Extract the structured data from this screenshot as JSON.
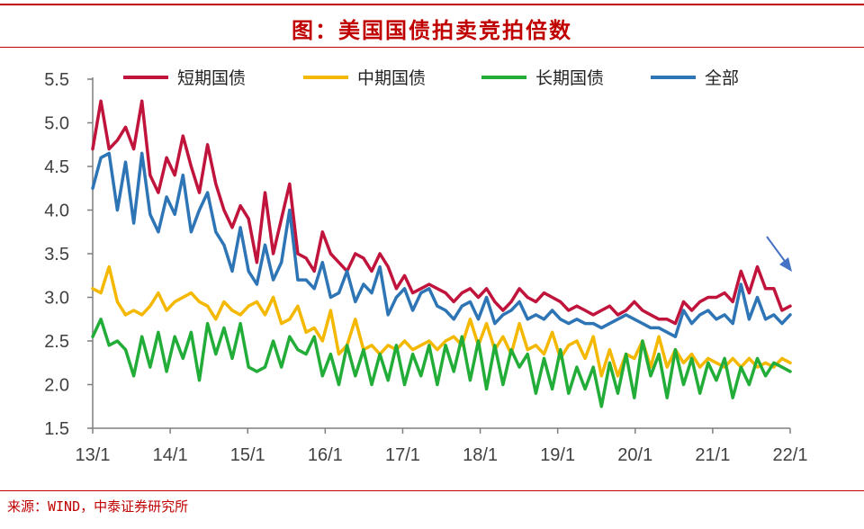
{
  "title": "图：美国国债拍卖竞拍倍数",
  "source": "来源：WIND，中泰证券研究所",
  "chart_data": {
    "type": "line",
    "ylim": [
      1.5,
      5.5
    ],
    "y_ticks": [
      "5.5",
      "5.0",
      "4.5",
      "4.0",
      "3.5",
      "3.0",
      "2.5",
      "2.0",
      "1.5"
    ],
    "x_ticks": [
      "13/1",
      "14/1",
      "15/1",
      "16/1",
      "17/1",
      "18/1",
      "19/1",
      "20/1",
      "21/1",
      "22/1"
    ],
    "x_range": [
      0,
      108
    ],
    "grid": false,
    "legend": "top",
    "annotation": {
      "type": "arrow",
      "color": "#4472c4",
      "direction": "down-right"
    },
    "series": [
      {
        "name": "短期国债",
        "color": "#c0143c",
        "values": [
          4.7,
          5.25,
          4.7,
          4.8,
          4.95,
          4.7,
          5.25,
          4.4,
          4.2,
          4.6,
          4.4,
          4.85,
          4.5,
          4.2,
          4.75,
          4.3,
          4.0,
          3.8,
          4.05,
          3.9,
          3.4,
          4.2,
          3.5,
          3.9,
          4.3,
          3.5,
          3.45,
          3.3,
          3.75,
          3.5,
          3.4,
          3.3,
          3.5,
          3.45,
          3.3,
          3.5,
          3.35,
          3.1,
          3.25,
          3.05,
          3.1,
          3.15,
          3.1,
          3.05,
          2.95,
          3.05,
          3.1,
          3.0,
          3.1,
          2.95,
          2.85,
          2.95,
          3.1,
          3.0,
          2.95,
          3.05,
          3.0,
          2.95,
          2.85,
          2.9,
          2.85,
          2.8,
          2.85,
          2.9,
          2.8,
          2.85,
          2.95,
          2.85,
          2.8,
          2.75,
          2.75,
          2.7,
          2.95,
          2.85,
          2.95,
          3.0,
          3.0,
          3.05,
          2.95,
          3.3,
          3.05,
          3.35,
          3.1,
          3.1,
          2.85,
          2.9
        ]
      },
      {
        "name": "中期国债",
        "color": "#f5b800",
        "values": [
          3.1,
          3.05,
          3.35,
          2.95,
          2.8,
          2.85,
          2.8,
          2.9,
          3.05,
          2.85,
          2.95,
          3.0,
          3.05,
          2.95,
          2.9,
          2.75,
          2.95,
          2.85,
          2.8,
          2.9,
          2.95,
          2.8,
          3.0,
          2.7,
          2.75,
          2.9,
          2.6,
          2.65,
          2.5,
          2.85,
          2.35,
          2.45,
          2.75,
          2.4,
          2.45,
          2.35,
          2.45,
          2.4,
          2.5,
          2.4,
          2.45,
          2.5,
          2.4,
          2.5,
          2.55,
          2.45,
          2.75,
          2.45,
          2.7,
          2.4,
          2.55,
          2.35,
          2.7,
          2.4,
          2.45,
          2.35,
          2.6,
          2.3,
          2.45,
          2.5,
          2.3,
          2.55,
          2.1,
          2.4,
          2.1,
          2.35,
          2.3,
          2.5,
          2.2,
          2.55,
          2.2,
          2.4,
          2.25,
          2.35,
          2.2,
          2.3,
          2.25,
          2.2,
          2.3,
          2.2,
          2.3,
          2.2,
          2.25,
          2.2,
          2.3,
          2.25
        ]
      },
      {
        "name": "长期国债",
        "color": "#22ac38",
        "values": [
          2.55,
          2.75,
          2.45,
          2.5,
          2.4,
          2.1,
          2.55,
          2.2,
          2.6,
          2.15,
          2.55,
          2.3,
          2.6,
          2.05,
          2.7,
          2.35,
          2.65,
          2.3,
          2.7,
          2.2,
          2.15,
          2.2,
          2.5,
          2.2,
          2.55,
          2.4,
          2.35,
          2.55,
          2.1,
          2.35,
          2.0,
          2.45,
          2.1,
          2.4,
          2.0,
          2.35,
          2.05,
          2.45,
          2.0,
          2.35,
          2.1,
          2.45,
          2.0,
          2.45,
          2.15,
          2.55,
          2.05,
          2.5,
          1.95,
          2.45,
          2.0,
          2.4,
          2.2,
          2.35,
          1.9,
          2.3,
          1.95,
          2.4,
          1.9,
          2.2,
          1.95,
          2.2,
          1.75,
          2.25,
          1.9,
          2.35,
          1.85,
          2.5,
          2.1,
          2.35,
          1.85,
          2.4,
          2.0,
          2.3,
          1.9,
          2.25,
          2.05,
          2.3,
          1.85,
          2.2,
          2.0,
          2.3,
          2.1,
          2.25,
          2.2,
          2.15
        ]
      },
      {
        "name": "全部",
        "color": "#2e75b6",
        "values": [
          4.25,
          4.6,
          4.65,
          4.0,
          4.55,
          3.85,
          4.65,
          3.95,
          3.75,
          4.15,
          3.95,
          4.4,
          3.75,
          4.0,
          4.2,
          3.75,
          3.6,
          3.3,
          3.8,
          3.3,
          3.15,
          3.6,
          3.2,
          3.4,
          4.0,
          3.2,
          3.2,
          3.1,
          3.4,
          3.0,
          3.05,
          3.3,
          2.95,
          3.15,
          3.05,
          3.35,
          2.8,
          3.0,
          3.1,
          2.85,
          3.05,
          3.1,
          2.9,
          2.85,
          2.75,
          2.9,
          2.95,
          2.75,
          3.0,
          2.7,
          2.8,
          2.85,
          2.95,
          2.75,
          2.8,
          2.75,
          2.85,
          2.75,
          2.7,
          2.75,
          2.7,
          2.7,
          2.65,
          2.7,
          2.75,
          2.8,
          2.75,
          2.7,
          2.65,
          2.65,
          2.6,
          2.55,
          2.85,
          2.7,
          2.8,
          2.85,
          2.75,
          2.8,
          2.7,
          3.15,
          2.75,
          3.0,
          2.75,
          2.8,
          2.7,
          2.8
        ]
      }
    ]
  }
}
